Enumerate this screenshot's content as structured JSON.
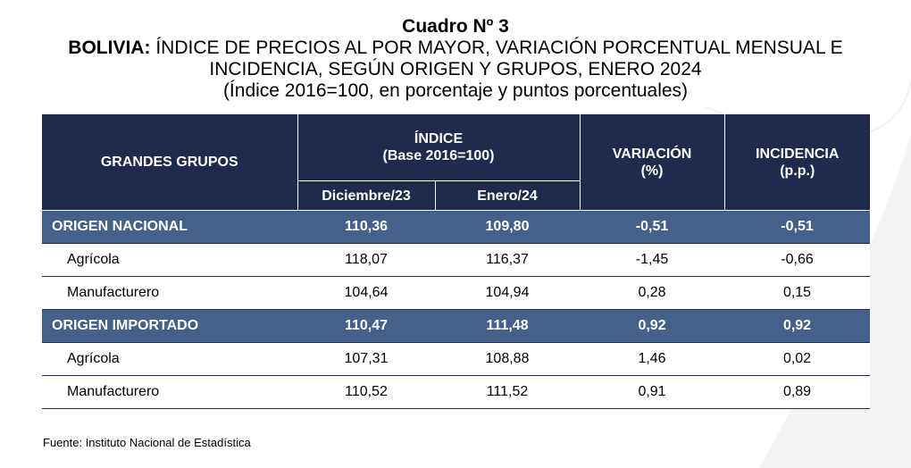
{
  "title": {
    "cuadro": "Cuadro Nº 3",
    "country": "BOLIVIA:",
    "line1_rest": "ÍNDICE DE PRECIOS AL POR MAYOR, VARIACIÓN PORCENTUAL MENSUAL E",
    "line2": "INCIDENCIA, SEGÚN ORIGEN Y GRUPOS, ENERO 2024",
    "line3": "(Índice 2016=100, en porcentaje y puntos porcentuales)"
  },
  "table": {
    "headers": {
      "grupos": "GRANDES GRUPOS",
      "indice": "ÍNDICE",
      "indice_base": "(Base 2016=100)",
      "variacion": "VARIACIÓN",
      "variacion_unit": "(%)",
      "incidencia": "INCIDENCIA",
      "incidencia_unit": "(p.p.)",
      "dic": "Diciembre/23",
      "ene": "Enero/24"
    },
    "rows": [
      {
        "label": "ORIGEN NACIONAL",
        "dic": "110,36",
        "ene": "109,80",
        "var": "-0,51",
        "inc": "-0,51"
      },
      {
        "label": "Agrícola",
        "dic": "118,07",
        "ene": "116,37",
        "var": "-1,45",
        "inc": "-0,66"
      },
      {
        "label": "Manufacturero",
        "dic": "104,64",
        "ene": "104,94",
        "var": "0,28",
        "inc": "0,15"
      },
      {
        "label": "ORIGEN IMPORTADO",
        "dic": "110,47",
        "ene": "111,48",
        "var": "0,92",
        "inc": "0,92"
      },
      {
        "label": "Agrícola",
        "dic": "107,31",
        "ene": "108,88",
        "var": "1,46",
        "inc": "0,02"
      },
      {
        "label": "Manufacturero",
        "dic": "110,52",
        "ene": "111,52",
        "var": "0,91",
        "inc": "0,89"
      }
    ]
  },
  "footer": {
    "source": "Fuente: Instituto Nacional de Estadística"
  },
  "colors": {
    "header_bg": "#1f2a4d",
    "group_row_bg": "#45608a"
  }
}
